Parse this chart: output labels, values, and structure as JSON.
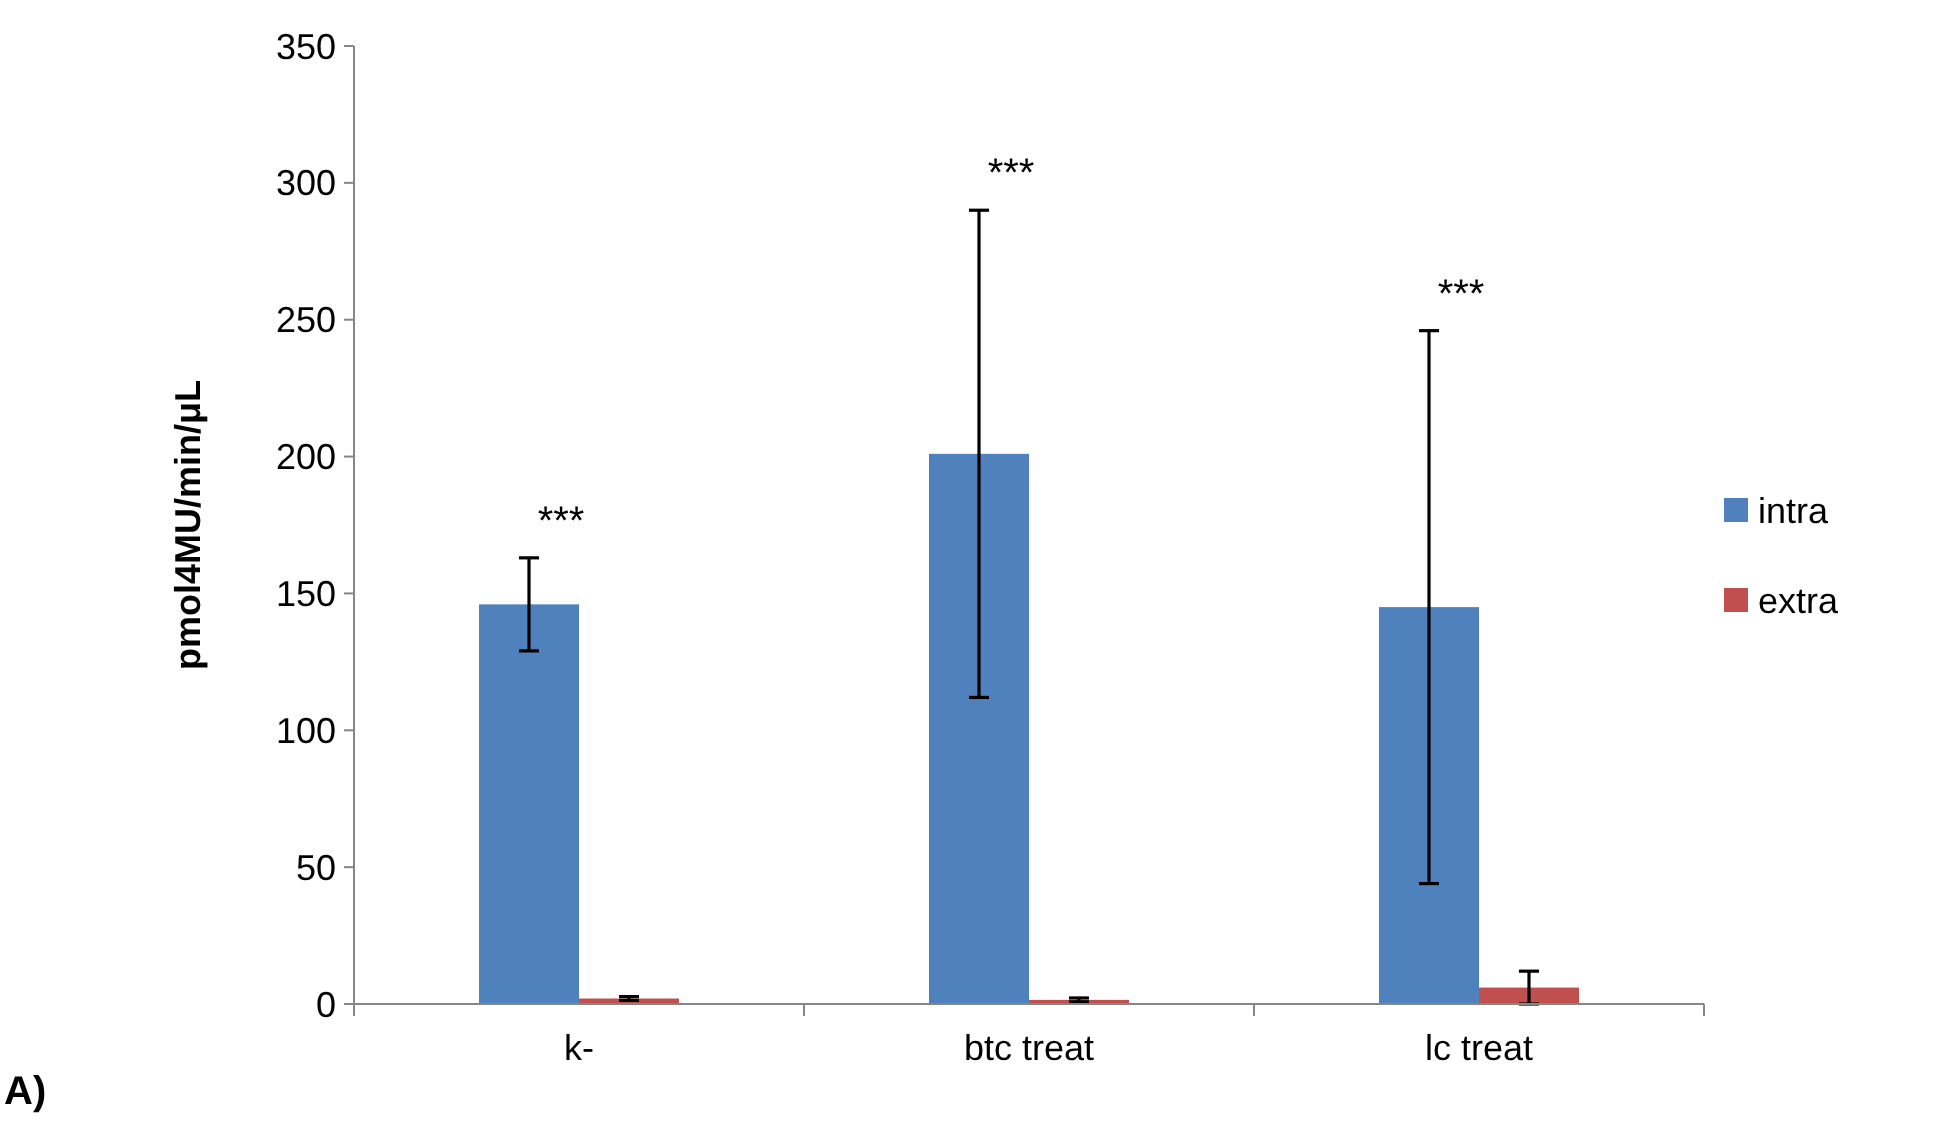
{
  "chart_data": {
    "type": "bar",
    "ylabel": "pmol4MU/min/μL",
    "categories": [
      "k-",
      "btc treat",
      "lc treat"
    ],
    "series": [
      {
        "name": "intra",
        "color": "#4f81bd",
        "values": [
          146,
          201,
          145
        ],
        "errors": [
          17,
          89,
          101
        ]
      },
      {
        "name": "extra",
        "color": "#c0504d",
        "values": [
          2,
          1.5,
          6
        ],
        "errors": [
          0.7,
          0.7,
          6
        ]
      }
    ],
    "ylim": [
      0,
      350
    ],
    "yticks": [
      0,
      50,
      100,
      150,
      200,
      250,
      300,
      350
    ],
    "grid": false,
    "legend": "right",
    "annotations": [
      "***",
      "***",
      "***",
      "A)"
    ]
  }
}
